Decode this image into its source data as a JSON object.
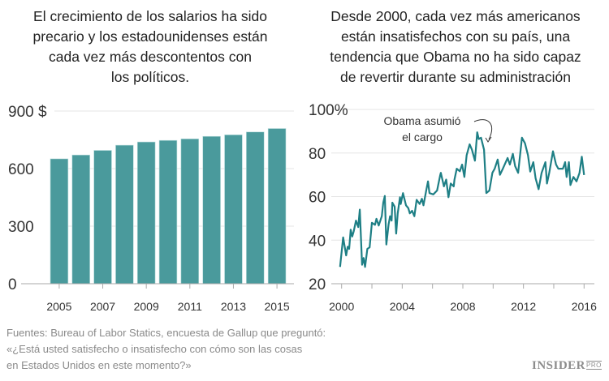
{
  "chart_data": [
    {
      "type": "bar",
      "title": [
        "El crecimiento de los salarios ha sido",
        "precario y los estadounidenses están",
        "cada vez más descontentos con",
        "los políticos."
      ],
      "categories": [
        2005,
        2006,
        2007,
        2008,
        2009,
        2010,
        2011,
        2012,
        2013,
        2014,
        2015
      ],
      "values": [
        651,
        671,
        695,
        722,
        739,
        747,
        755,
        768,
        776,
        791,
        809
      ],
      "ylim": [
        0,
        900
      ],
      "yticks": [
        0,
        300,
        600,
        900
      ],
      "ytick_labels": [
        "0",
        "300",
        "600",
        "900 $"
      ],
      "xtick_labels": [
        "2005",
        "2007",
        "2009",
        "2011",
        "2013",
        "2015"
      ],
      "grid": true,
      "color": "#4a9a9c"
    },
    {
      "type": "line",
      "title": [
        "Desde 2000, cada vez más americanos",
        "están insatisfechos con su país, una",
        "tendencia que Obama no ha sido capaz",
        "de revertir durante su administración"
      ],
      "x": [
        1999.9,
        2000.1,
        2000.3,
        2000.4,
        2000.5,
        2000.6,
        2000.7,
        2000.8,
        2000.95,
        2001.1,
        2001.2,
        2001.35,
        2001.45,
        2001.55,
        2001.7,
        2001.85,
        2002.0,
        2002.2,
        2002.3,
        2002.45,
        2002.65,
        2002.75,
        2002.85,
        2002.95,
        2003.1,
        2003.2,
        2003.3,
        2003.35,
        2003.5,
        2003.6,
        2003.7,
        2003.85,
        2003.9,
        2004.05,
        2004.25,
        2004.4,
        2004.5,
        2004.65,
        2004.8,
        2004.95,
        2005.15,
        2005.3,
        2005.4,
        2005.6,
        2005.7,
        2005.8,
        2006.05,
        2006.3,
        2006.5,
        2006.55,
        2006.75,
        2006.9,
        2007.05,
        2007.2,
        2007.4,
        2007.45,
        2007.6,
        2007.8,
        2007.95,
        2008.1,
        2008.25,
        2008.45,
        2008.6,
        2008.8,
        2008.95,
        2009.05,
        2009.2,
        2009.4,
        2009.55,
        2009.75,
        2009.95,
        2010.1,
        2010.3,
        2010.45,
        2010.65,
        2010.95,
        2011.1,
        2011.3,
        2011.45,
        2011.65,
        2011.9,
        2012.1,
        2012.3,
        2012.45,
        2012.65,
        2012.8,
        2013.0,
        2013.2,
        2013.45,
        2013.55,
        2013.7,
        2013.95,
        2014.15,
        2014.3,
        2014.6,
        2014.75,
        2014.85,
        2015.0,
        2015.1,
        2015.3,
        2015.5,
        2015.7,
        2015.85,
        2016.0
      ],
      "values": [
        27.7,
        41.3,
        33,
        37,
        36,
        44.8,
        41.7,
        44,
        49,
        46,
        54,
        28.7,
        31.8,
        27.7,
        36,
        36.7,
        48,
        47,
        49.8,
        46.7,
        51,
        57.2,
        60.3,
        38,
        47.3,
        51,
        49,
        57.2,
        55.4,
        43,
        52.3,
        59.7,
        56.6,
        61.6,
        56,
        54.7,
        52.3,
        53.5,
        51,
        58.5,
        56.6,
        59,
        56,
        63.4,
        67,
        61.6,
        61,
        62.8,
        69.6,
        70.9,
        64.7,
        67.8,
        59.7,
        66,
        64.7,
        67.8,
        72.8,
        71.6,
        74.7,
        69,
        79,
        84,
        81.5,
        76.5,
        89.5,
        86.4,
        87,
        81.5,
        61.6,
        62.8,
        70.9,
        72.8,
        77,
        70,
        73,
        77.7,
        74.7,
        79.6,
        74,
        70.9,
        87,
        84.5,
        79,
        71.5,
        75.8,
        68.4,
        63.4,
        70.9,
        75.8,
        66,
        70.9,
        80.8,
        74.7,
        72.8,
        72.8,
        75.8,
        69,
        75.8,
        65.3,
        69,
        67,
        70.9,
        78.3,
        69.9
      ],
      "ylim": [
        20,
        100
      ],
      "xlim": [
        2000,
        2016
      ],
      "yticks": [
        20,
        40,
        60,
        80,
        100
      ],
      "ytick_labels": [
        "20",
        "40",
        "60",
        "80",
        "100%"
      ],
      "xtick_labels": [
        "2000",
        "2004",
        "2008",
        "2012",
        "2016"
      ],
      "annotation": {
        "lines": [
          "Obama asumió",
          "el cargo"
        ],
        "x": 2009.05
      },
      "grid": true,
      "color": "#1e7f85"
    }
  ],
  "footer": {
    "lines": [
      "Fuentes: Bureau of Labor Statics, encuesta de Gallup que preguntó:",
      " «¿Está usted satisfecho o insatisfecho con cómo son las cosas",
      "en Estados Unidos en este momento?»"
    ]
  },
  "logo": {
    "text": "INSIDER",
    "sub": "PRO"
  }
}
